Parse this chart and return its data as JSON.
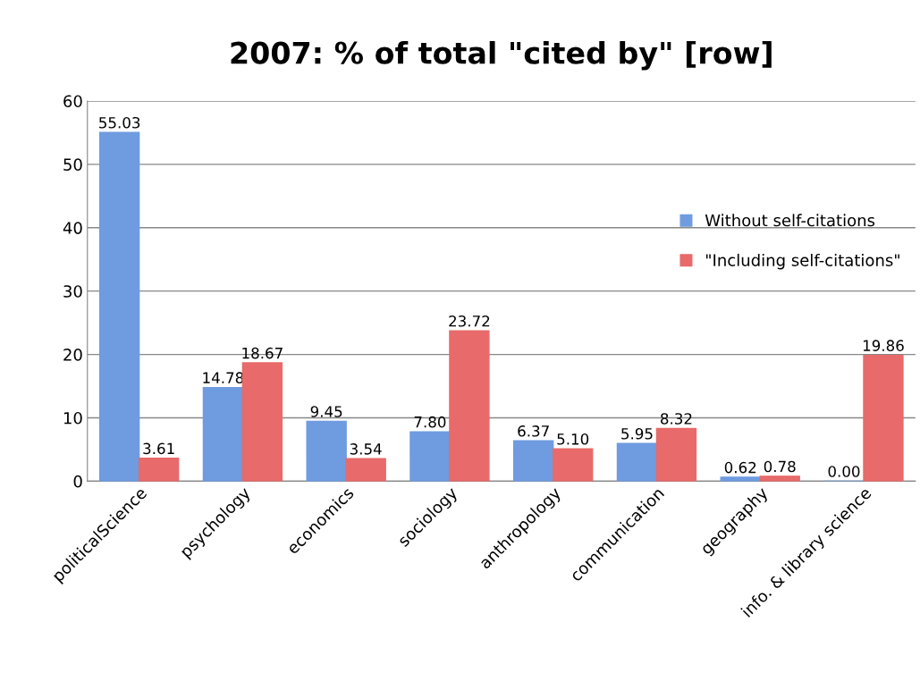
{
  "chart_data": {
    "type": "bar",
    "title": "2007: % of total \"cited by\" [row]",
    "categories": [
      "politicalScience",
      "psychology",
      "economics",
      "sociology",
      "anthropology",
      "communication",
      "geography",
      "info. & library science"
    ],
    "series": [
      {
        "name": "Without self-citations",
        "color": "#6f9be0",
        "values": [
          55.03,
          14.78,
          9.45,
          7.8,
          6.37,
          5.95,
          0.62,
          0.0
        ],
        "value_labels": [
          "55.03",
          "14.78",
          "9.45",
          "7.80",
          "6.37",
          "5.95",
          "0.62",
          "0.00"
        ]
      },
      {
        "name": "\"Including self-citations\"",
        "color": "#e86a6a",
        "values": [
          3.61,
          18.67,
          3.54,
          23.72,
          5.1,
          8.32,
          0.78,
          19.86
        ],
        "value_labels": [
          "3.61",
          "18.67",
          "3.54",
          "23.72",
          "5.10",
          "8.32",
          "0.78",
          "19.86"
        ]
      }
    ],
    "ylim": [
      0,
      60
    ],
    "yticks": [
      0,
      10,
      20,
      30,
      40,
      50,
      60
    ],
    "grid": "y",
    "legend": "right"
  }
}
